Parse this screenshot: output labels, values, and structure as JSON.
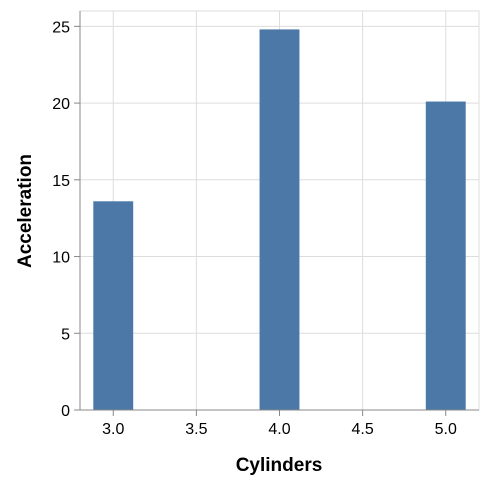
{
  "chart_data": {
    "type": "bar",
    "title": "",
    "xlabel": "Cylinders",
    "ylabel": "Acceleration",
    "x": [
      3,
      4,
      5
    ],
    "values": [
      13.6,
      24.8,
      20.1
    ],
    "xlim": [
      2.8,
      5.2
    ],
    "ylim": [
      0,
      26
    ],
    "xticks": [
      "3.0",
      "3.5",
      "4.0",
      "4.5",
      "5.0"
    ],
    "xtick_values": [
      3.0,
      3.5,
      4.0,
      4.5,
      5.0
    ],
    "yticks": [
      "0",
      "5",
      "10",
      "15",
      "20",
      "25"
    ],
    "ytick_values": [
      0,
      5,
      10,
      15,
      20,
      25
    ],
    "bar_width": 0.24,
    "grid": true,
    "color": "#4c78a8",
    "gridColor": "#dddddd",
    "axisColor": "#888888"
  }
}
